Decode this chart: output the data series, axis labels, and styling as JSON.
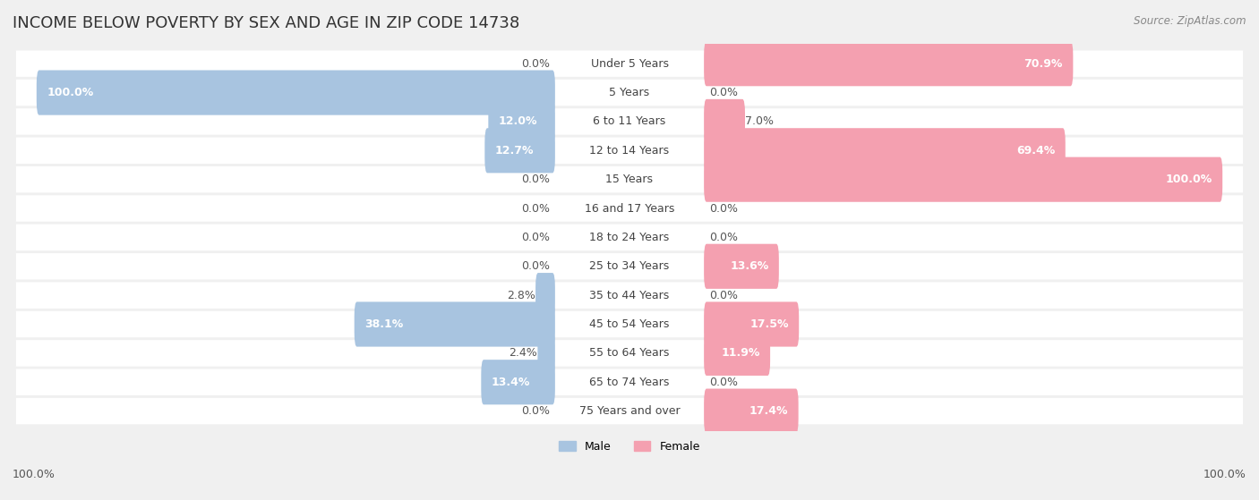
{
  "title": "INCOME BELOW POVERTY BY SEX AND AGE IN ZIP CODE 14738",
  "source": "Source: ZipAtlas.com",
  "categories": [
    "Under 5 Years",
    "5 Years",
    "6 to 11 Years",
    "12 to 14 Years",
    "15 Years",
    "16 and 17 Years",
    "18 to 24 Years",
    "25 to 34 Years",
    "35 to 44 Years",
    "45 to 54 Years",
    "55 to 64 Years",
    "65 to 74 Years",
    "75 Years and over"
  ],
  "male_values": [
    0.0,
    100.0,
    12.0,
    12.7,
    0.0,
    0.0,
    0.0,
    0.0,
    2.8,
    38.1,
    2.4,
    13.4,
    0.0
  ],
  "female_values": [
    70.9,
    0.0,
    7.0,
    69.4,
    100.0,
    0.0,
    0.0,
    13.6,
    0.0,
    17.5,
    11.9,
    0.0,
    17.4
  ],
  "male_color": "#a8c4e0",
  "female_color": "#f4a0b0",
  "male_label": "Male",
  "female_label": "Female",
  "bg_color": "#f0f0f0",
  "bar_bg_color": "#ffffff",
  "max_value": 100.0,
  "title_fontsize": 13,
  "label_fontsize": 9,
  "tick_fontsize": 9,
  "source_fontsize": 8.5
}
